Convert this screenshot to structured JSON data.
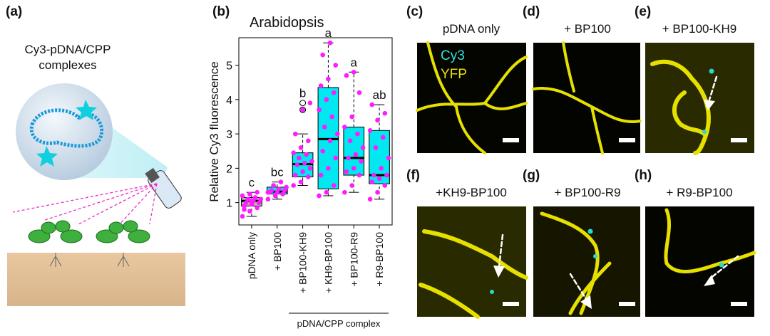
{
  "panel_a": {
    "label": "(a)",
    "caption": [
      "Cy3-pDNA/CPP",
      "complexes"
    ]
  },
  "chart_data": {
    "type": "box",
    "label": "(b)",
    "title": "Arabidopsis",
    "y_label": "Relative Cy3 fluorescence",
    "categories": [
      "pDNA only",
      "+ BP100",
      "+ BP100-KH9",
      "+ KH9-BP100",
      "+ BP100-R9",
      "+ R9-BP100"
    ],
    "group_label": "pDNA/CPP complex",
    "ylim": [
      0.35,
      5.8
    ],
    "yticks": [
      1,
      2,
      3,
      4,
      5
    ],
    "point_color": "#ff1aff",
    "boxes": [
      {
        "color": "#b5b5b5",
        "whisker_low": 0.6,
        "q1": 0.9,
        "median": 1.05,
        "q3": 1.15,
        "whisker_high": 1.3,
        "letter": "c",
        "points": [
          0.6,
          0.75,
          0.85,
          0.9,
          0.95,
          1.0,
          1.0,
          1.05,
          1.1,
          1.1,
          1.15,
          1.2,
          1.25,
          1.3,
          0.8,
          1.05
        ]
      },
      {
        "color": "#00e8f0",
        "whisker_low": 1.1,
        "q1": 1.25,
        "median": 1.32,
        "q3": 1.45,
        "whisker_high": 1.6,
        "letter": "bc",
        "points": [
          1.1,
          1.2,
          1.25,
          1.3,
          1.3,
          1.35,
          1.35,
          1.4,
          1.45,
          1.5,
          1.6,
          1.3
        ]
      },
      {
        "color": "#00e8f0",
        "whisker_low": 1.5,
        "q1": 1.75,
        "median": 2.12,
        "q3": 2.45,
        "whisker_high": 3.0,
        "letter": "b",
        "outliers": [
          3.7,
          3.9
        ],
        "points": [
          1.5,
          1.6,
          1.75,
          1.8,
          1.9,
          2.0,
          2.1,
          2.15,
          2.2,
          2.3,
          2.4,
          2.45,
          2.6,
          2.8,
          3.0,
          3.7,
          3.9
        ]
      },
      {
        "color": "#00e8f0",
        "whisker_low": 1.2,
        "q1": 1.4,
        "median": 2.85,
        "q3": 4.35,
        "whisker_high": 5.65,
        "letter": "a",
        "points": [
          1.2,
          1.3,
          1.5,
          1.8,
          2.0,
          2.3,
          2.5,
          2.8,
          3.0,
          3.2,
          3.5,
          3.7,
          4.0,
          4.2,
          4.4,
          4.6,
          5.0,
          5.3,
          5.65
        ]
      },
      {
        "color": "#00e8f0",
        "whisker_low": 1.3,
        "q1": 1.8,
        "median": 2.3,
        "q3": 3.2,
        "whisker_high": 4.8,
        "letter": "a",
        "points": [
          1.3,
          1.5,
          1.8,
          1.9,
          2.0,
          2.2,
          2.3,
          2.4,
          2.6,
          2.8,
          3.0,
          3.2,
          3.5,
          4.2,
          4.7,
          4.8
        ]
      },
      {
        "color": "#00e8f0",
        "whisker_low": 1.1,
        "q1": 1.55,
        "median": 1.8,
        "q3": 3.1,
        "whisker_high": 3.85,
        "letter": "ab",
        "points": [
          1.1,
          1.3,
          1.5,
          1.6,
          1.7,
          1.8,
          1.8,
          2.0,
          2.3,
          2.6,
          2.9,
          3.1,
          3.4,
          3.6,
          3.85
        ]
      }
    ]
  },
  "channels": [
    {
      "name": "Cy3",
      "color": "#33e0e0"
    },
    {
      "name": "YFP",
      "color": "#e8e000"
    }
  ],
  "images": [
    {
      "label": "(c)",
      "title": "pDNA only"
    },
    {
      "label": "(d)",
      "title": "+ BP100"
    },
    {
      "label": "(e)",
      "title": "+ BP100-KH9"
    },
    {
      "label": "(f)",
      "title": "+KH9-BP100"
    },
    {
      "label": "(g)",
      "title": "+ BP100-R9"
    },
    {
      "label": "(h)",
      "title": "+ R9-BP100"
    }
  ]
}
